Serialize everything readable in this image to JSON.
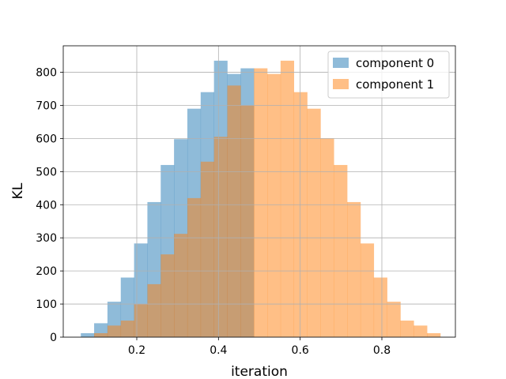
{
  "chart_data": {
    "type": "bar",
    "subtype": "overlapping-histogram",
    "xlabel": "iteration",
    "ylabel": "KL",
    "xlim": [
      0.02,
      0.98
    ],
    "ylim": [
      0,
      880
    ],
    "xticks": [
      0.2,
      0.4,
      0.6,
      0.8
    ],
    "yticks": [
      0,
      100,
      200,
      300,
      400,
      500,
      600,
      700,
      800
    ],
    "grid": true,
    "legend_position": "top-right",
    "series": [
      {
        "name": "component 0",
        "color": "#1f77b4",
        "alpha": 0.5,
        "bin_edges": [
          0.063,
          0.0956,
          0.1282,
          0.1608,
          0.1934,
          0.226,
          0.2586,
          0.2912,
          0.3238,
          0.3564,
          0.389,
          0.4216,
          0.4542,
          0.4868
        ],
        "values": [
          12,
          42,
          107,
          180,
          283,
          408,
          520,
          598,
          690,
          740,
          835,
          795,
          812
        ]
      },
      {
        "name": "component 1",
        "color": "#ff7f0e",
        "alpha": 0.5,
        "bin_edges": [
          0.0956,
          0.1282,
          0.1608,
          0.1934,
          0.226,
          0.2586,
          0.2912,
          0.3238,
          0.3564,
          0.389,
          0.4216,
          0.4542,
          0.4868,
          0.5194,
          0.552,
          0.5846,
          0.6172,
          0.6498,
          0.6824,
          0.715,
          0.7476,
          0.7802,
          0.8128,
          0.8454,
          0.878,
          0.9106,
          0.9432
        ],
        "values": [
          12,
          35,
          50,
          100,
          160,
          250,
          312,
          420,
          530,
          605,
          760,
          700,
          812,
          795,
          835,
          740,
          690,
          600,
          520,
          408,
          283,
          180,
          107,
          50,
          35,
          12
        ]
      }
    ],
    "overlap_color": "#c69b6d",
    "component0_tail_values": {
      "note_visible_only": false
    }
  }
}
